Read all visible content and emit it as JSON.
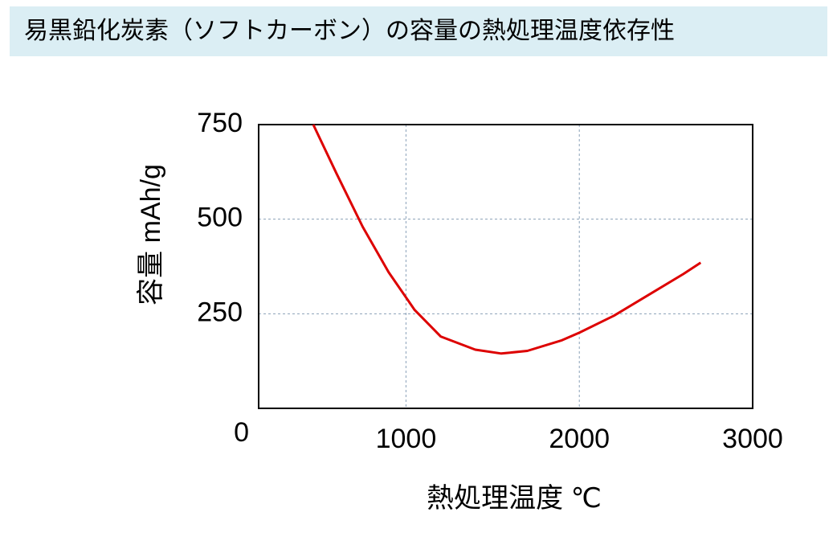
{
  "chart_data": {
    "type": "line",
    "title": "易黒鉛化炭素（ソフトカーボン）の容量の熱処理温度依存性",
    "x_label": "熱処理温度 ℃",
    "y_label": "容量 mAh/g",
    "x": [
      465,
      600,
      750,
      900,
      1050,
      1200,
      1400,
      1550,
      1700,
      1900,
      2000,
      2200,
      2400,
      2600,
      2700
    ],
    "series": [
      {
        "name": "容量",
        "color": "#dd0000",
        "values": [
          750,
          620,
          480,
          360,
          260,
          190,
          155,
          145,
          152,
          180,
          200,
          245,
          300,
          355,
          385
        ]
      }
    ],
    "xlim": [
      150,
      3000
    ],
    "xticks": [
      1000,
      2000,
      3000
    ],
    "ylim": [
      0,
      750
    ],
    "yticks": [
      0,
      250,
      500,
      750
    ],
    "grid": true
  }
}
